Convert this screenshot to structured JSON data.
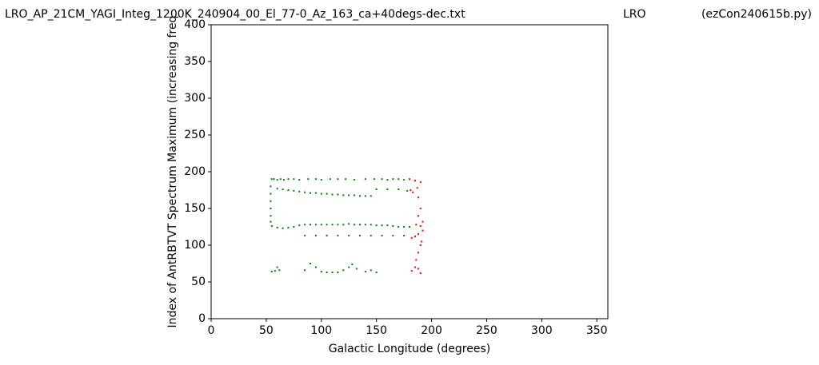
{
  "chart_data": {
    "type": "scatter",
    "title": "LRO_AP_21CM_YAGI_Integ_1200K_240904_00_El_77-0_Az_163_ca+40degs-dec.txt",
    "title_center": "LRO",
    "title_right": "(ezCon240615b.py)",
    "xlabel": "Galactic Longitude (degrees)",
    "ylabel": "Index of AntRBTVT Spectrum Maximum (increasing freq",
    "xlim": [
      0,
      360
    ],
    "xticks": [
      0,
      50,
      100,
      150,
      200,
      250,
      300,
      350
    ],
    "ylim": [
      0,
      400
    ],
    "yticks": [
      0,
      50,
      100,
      150,
      200,
      250,
      300,
      350,
      400
    ],
    "series": [
      {
        "color": "#008000",
        "x": [
          55,
          57,
          60,
          63,
          66,
          70,
          75,
          80,
          88,
          95,
          100,
          108,
          115,
          122,
          130,
          140,
          148,
          155,
          160,
          165,
          170,
          175,
          60,
          65,
          70,
          75,
          80,
          85,
          90,
          95,
          100,
          105,
          110,
          115,
          120,
          125,
          130,
          135,
          140,
          145,
          150,
          160,
          170,
          178,
          54,
          54,
          54,
          54,
          54,
          54,
          55,
          60,
          65,
          70,
          75,
          80,
          85,
          90,
          95,
          100,
          105,
          110,
          115,
          120,
          125,
          130,
          135,
          140,
          145,
          150,
          155,
          160,
          165,
          170,
          175,
          180,
          85,
          95,
          105,
          115,
          125,
          135,
          145,
          155,
          165,
          175,
          55,
          58,
          60,
          62,
          85,
          90,
          95,
          100,
          105,
          110,
          115,
          120,
          125,
          128,
          132,
          140,
          145,
          150
        ],
        "values": [
          190,
          190,
          189,
          190,
          189,
          190,
          190,
          189,
          190,
          190,
          189,
          190,
          190,
          190,
          189,
          190,
          190,
          190,
          189,
          190,
          190,
          189,
          177,
          176,
          175,
          174,
          173,
          172,
          171,
          171,
          170,
          170,
          169,
          169,
          168,
          168,
          168,
          167,
          167,
          167,
          176,
          176,
          176,
          174,
          180,
          170,
          160,
          150,
          140,
          132,
          126,
          124,
          123,
          124,
          125,
          127,
          128,
          128,
          128,
          128,
          128,
          128,
          128,
          128,
          129,
          128,
          128,
          128,
          128,
          127,
          127,
          127,
          126,
          125,
          125,
          125,
          113,
          113,
          113,
          113,
          113,
          113,
          113,
          113,
          113,
          113,
          64,
          65,
          70,
          66,
          66,
          75,
          70,
          64,
          63,
          63,
          63,
          66,
          70,
          74,
          68,
          64,
          66,
          63
        ]
      },
      {
        "color": "#ff0000",
        "x": [
          180,
          185,
          190,
          181,
          183,
          187,
          188,
          190,
          188,
          192,
          186,
          190,
          192,
          182,
          185,
          190,
          188,
          186,
          185,
          182,
          188,
          190,
          188,
          191
        ],
        "values": [
          190,
          188,
          186,
          175,
          172,
          178,
          165,
          150,
          140,
          132,
          128,
          126,
          120,
          110,
          112,
          100,
          90,
          80,
          70,
          65,
          68,
          62,
          115,
          105
        ]
      }
    ]
  }
}
